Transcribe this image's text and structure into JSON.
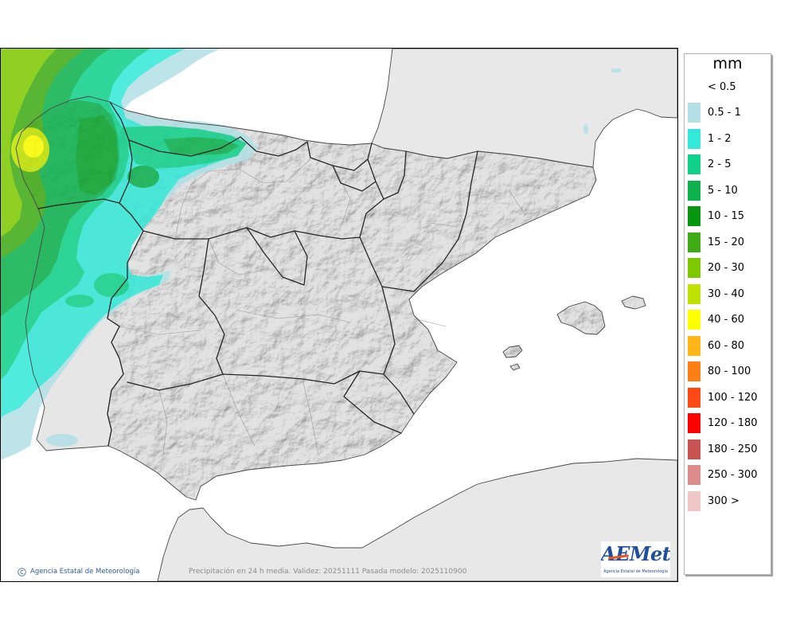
{
  "map": {
    "caption": "Precipitación en 24 h media. Validez: 20251111 Pasada modelo: 2025110900",
    "credit": "Agencia Estatal de Meteorología",
    "colors": {
      "sea": "#ffffff",
      "spain": "#e2e2e2",
      "portugal": "#e6e6e6",
      "neighbor_land": "#e8e8e8",
      "coastline": "#474747",
      "region_border": "#262626",
      "province_border": "#9a9a9a",
      "credit_text": "#2b5f9e",
      "caption_text": "#8c8c8c"
    }
  },
  "logo": {
    "wordmark": "AEMet",
    "subtitle": "Agencia Estatal de Meteorología",
    "colors": {
      "primary": "#1f4f9a",
      "accent": "#e8541e"
    }
  },
  "legend": {
    "unit": "mm",
    "items": [
      {
        "label": "< 0.5",
        "color": "#ffffff"
      },
      {
        "label": "0.5 - 1",
        "color": "#b2e0e6"
      },
      {
        "label": "1 - 2",
        "color": "#33e8d8"
      },
      {
        "label": "2 - 5",
        "color": "#10d08a"
      },
      {
        "label": "5 - 10",
        "color": "#0cb04c"
      },
      {
        "label": "10 - 15",
        "color": "#089810"
      },
      {
        "label": "15 - 20",
        "color": "#3eab14"
      },
      {
        "label": "20 - 30",
        "color": "#7ec800"
      },
      {
        "label": "30 - 40",
        "color": "#c0e200"
      },
      {
        "label": "40 - 60",
        "color": "#ffff00"
      },
      {
        "label": "60 - 80",
        "color": "#ffb616"
      },
      {
        "label": "80 - 100",
        "color": "#ff7f14"
      },
      {
        "label": "100 - 120",
        "color": "#ff4814"
      },
      {
        "label": "120 - 180",
        "color": "#ff0000"
      },
      {
        "label": "180 - 250",
        "color": "#c95252"
      },
      {
        "label": "250 - 300",
        "color": "#dc8a8a"
      },
      {
        "label": "300 >",
        "color": "#f0c6c6"
      }
    ]
  }
}
